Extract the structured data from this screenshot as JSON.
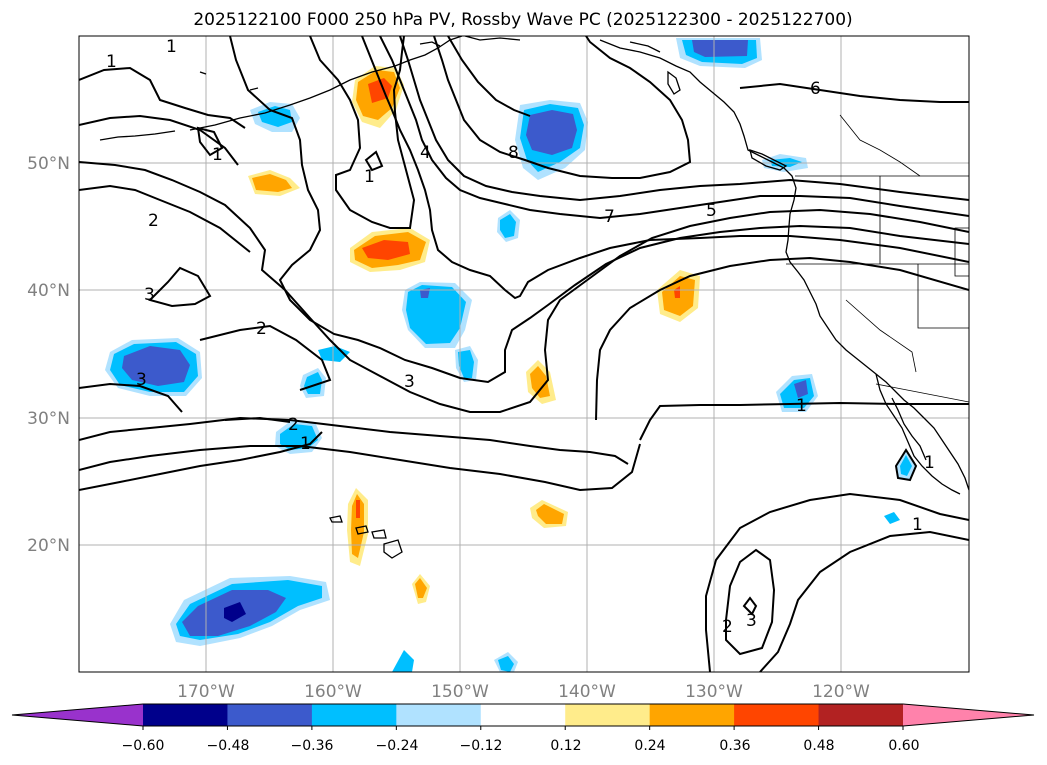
{
  "title": "2025122100 F000 250 hPa PV, Rossby Wave PC (2025122300 - 2025122700)",
  "map": {
    "lon_range": [
      -180,
      -110
    ],
    "lat_range": [
      10,
      60
    ],
    "grid": true,
    "lat_labels": [
      "20°N",
      "30°N",
      "40°N",
      "50°N"
    ],
    "lon_labels": [
      "170°W",
      "160°W",
      "150°W",
      "140°W",
      "130°W",
      "120°W"
    ],
    "contour_labels": [
      "1",
      "1",
      "1",
      "1",
      "1",
      "1",
      "1",
      "1",
      "2",
      "2",
      "2",
      "2",
      "3",
      "3",
      "3",
      "3",
      "4",
      "5",
      "6",
      "7",
      "8"
    ]
  },
  "colorbar": {
    "ticks": [
      "−0.60",
      "−0.48",
      "−0.36",
      "−0.24",
      "−0.12",
      "0.12",
      "0.24",
      "0.36",
      "0.48",
      "0.60"
    ],
    "colors": [
      "#9932cc",
      "#00008b",
      "#3c5acc",
      "#00bfff",
      "#b0e2ff",
      "#ffffff",
      "#ffec8b",
      "#ffa500",
      "#ff4500",
      "#b22222",
      "#ff82ab"
    ]
  }
}
